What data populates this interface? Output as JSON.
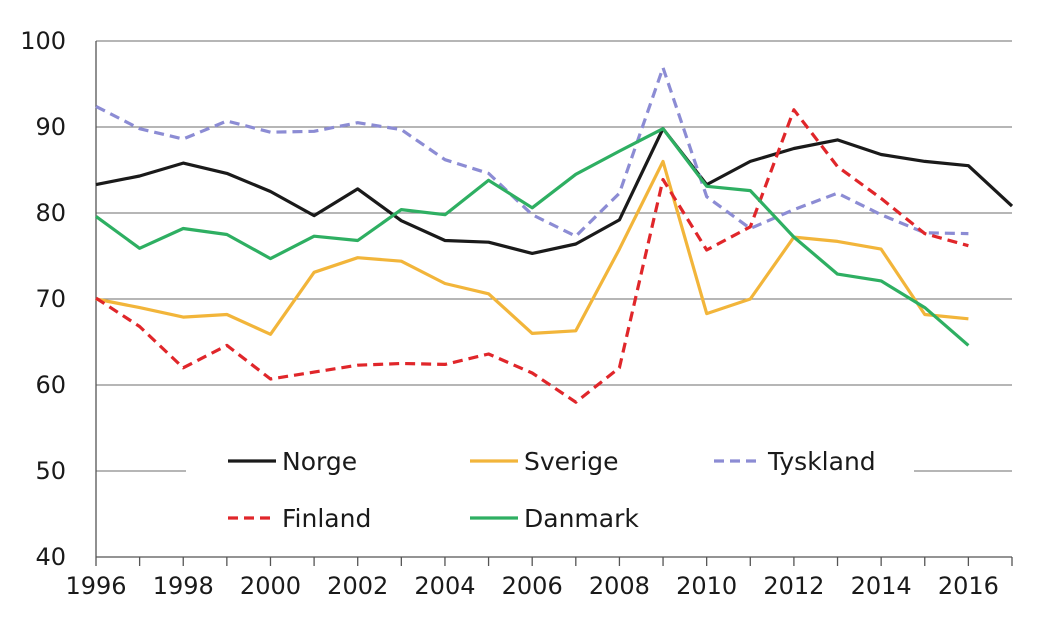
{
  "chart_data": {
    "type": "line",
    "title": "",
    "xlabel": "",
    "ylabel": "",
    "xlim": [
      1996,
      2017
    ],
    "ylim": [
      40,
      100
    ],
    "x_ticks": [
      "1996",
      "1998",
      "2000",
      "2002",
      "2004",
      "2006",
      "2008",
      "2010",
      "2012",
      "2014",
      "2016"
    ],
    "y_ticks": [
      "40",
      "50",
      "60",
      "70",
      "80",
      "90",
      "100"
    ],
    "grid": "horizontal",
    "legend_position": "bottom-inside",
    "series": [
      {
        "name": "Norge",
        "color": "#1a1a1a",
        "style": "solid",
        "x": [
          1996,
          1997,
          1998,
          1999,
          2000,
          2001,
          2002,
          2003,
          2004,
          2005,
          2006,
          2007,
          2008,
          2009,
          2010,
          2011,
          2012,
          2013,
          2014,
          2015,
          2016,
          2017
        ],
        "values": [
          83.3,
          84.3,
          85.8,
          84.6,
          82.5,
          79.7,
          82.8,
          79.1,
          76.8,
          76.6,
          75.3,
          76.4,
          79.2,
          89.8,
          83.3,
          86.0,
          87.5,
          88.5,
          86.8,
          86.0,
          85.5,
          80.8
        ]
      },
      {
        "name": "Sverige",
        "color": "#f2b53a",
        "style": "solid",
        "x": [
          1996,
          1997,
          1998,
          1999,
          2000,
          2001,
          2002,
          2003,
          2004,
          2005,
          2006,
          2007,
          2008,
          2009,
          2010,
          2011,
          2012,
          2013,
          2014,
          2015,
          2016
        ],
        "values": [
          70.0,
          69.0,
          67.9,
          68.2,
          65.9,
          73.1,
          74.8,
          74.4,
          71.8,
          70.6,
          66.0,
          66.3,
          75.8,
          86.0,
          68.3,
          70.0,
          77.2,
          76.7,
          75.8,
          68.2,
          67.7
        ]
      },
      {
        "name": "Tyskland",
        "color": "#8c8cd4",
        "style": "dashed",
        "x": [
          1996,
          1997,
          1998,
          1999,
          2000,
          2001,
          2002,
          2003,
          2004,
          2005,
          2006,
          2007,
          2008,
          2009,
          2010,
          2011,
          2012,
          2013,
          2014,
          2015,
          2016
        ],
        "values": [
          92.4,
          89.8,
          88.6,
          90.7,
          89.4,
          89.5,
          90.5,
          89.7,
          86.2,
          84.6,
          79.8,
          77.3,
          82.3,
          96.9,
          81.9,
          78.2,
          80.4,
          82.3,
          79.8,
          77.7,
          77.6
        ]
      },
      {
        "name": "Finland",
        "color": "#e0262a",
        "style": "dashed",
        "x": [
          1996,
          1997,
          1998,
          1999,
          2000,
          2001,
          2002,
          2003,
          2004,
          2005,
          2006,
          2007,
          2008,
          2009,
          2010,
          2011,
          2012,
          2013,
          2014,
          2015,
          2016
        ],
        "values": [
          70.1,
          66.8,
          62.0,
          64.6,
          60.7,
          61.5,
          62.3,
          62.5,
          62.4,
          63.6,
          61.4,
          58.0,
          62.0,
          83.9,
          75.7,
          78.4,
          92.0,
          85.4,
          81.7,
          77.6,
          76.2
        ]
      },
      {
        "name": "Danmark",
        "color": "#2eaf62",
        "style": "solid",
        "x": [
          1996,
          1997,
          1998,
          1999,
          2000,
          2001,
          2002,
          2003,
          2004,
          2005,
          2006,
          2007,
          2008,
          2009,
          2010,
          2011,
          2012,
          2013,
          2014,
          2015,
          2016
        ],
        "values": [
          79.6,
          75.9,
          78.2,
          77.5,
          74.7,
          77.3,
          76.8,
          80.4,
          79.8,
          83.8,
          80.6,
          84.5,
          87.2,
          89.8,
          83.1,
          82.6,
          77.2,
          72.9,
          72.1,
          69.0,
          64.6
        ]
      }
    ]
  }
}
